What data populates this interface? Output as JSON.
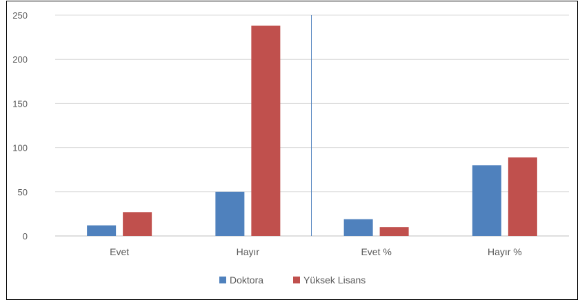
{
  "chart_data": {
    "type": "bar",
    "categories": [
      "Evet",
      "Hayır",
      "Evet %",
      "Hayır %"
    ],
    "series": [
      {
        "name": "Doktora",
        "values": [
          12,
          50,
          19,
          80
        ],
        "color": "#4f81bd"
      },
      {
        "name": "Yüksek Lisans",
        "values": [
          27,
          238,
          10,
          89
        ],
        "color": "#c0504d"
      }
    ],
    "yticks": [
      "0",
      "50",
      "100",
      "150",
      "200",
      "250"
    ],
    "ylim": [
      0,
      250
    ],
    "grid": true,
    "legend_position": "bottom",
    "divider_after_category": 2,
    "divider_color": "#4f81bd",
    "title": "",
    "xlabel": "",
    "ylabel": ""
  }
}
